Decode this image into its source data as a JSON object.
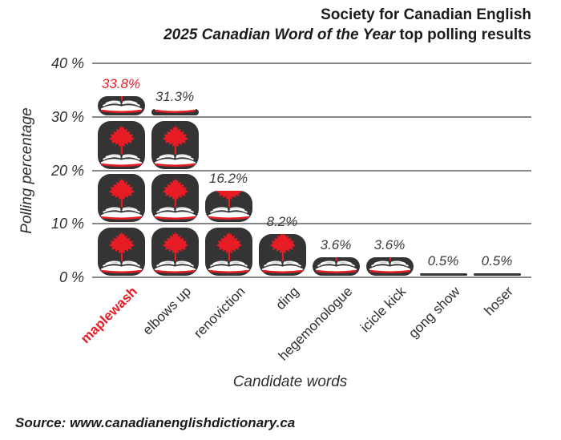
{
  "title": {
    "line1": "Society for Canadian English",
    "line2_italic": "2025 Canadian Word of the Year",
    "line2_rest": " top polling results"
  },
  "axes": {
    "y_label": "Polling percentage",
    "x_label": "Candidate words",
    "y_ticks": [
      "0 %",
      "10 %",
      "20 %",
      "30 %",
      "40 %"
    ]
  },
  "source": "Source: www.canadianenglishdictionary.ca",
  "colors": {
    "accent_red": "#e81c24",
    "tile_dark": "#343434",
    "gridline_gray": "#878787",
    "text_dark": "#2e2e2e"
  },
  "chart_data": {
    "type": "bar",
    "subtype": "pictogram-stacked-icons",
    "title": "Society for Canadian English — 2025 Canadian Word of the Year top polling results",
    "xlabel": "Candidate words",
    "ylabel": "Polling percentage",
    "ylim": [
      0,
      40
    ],
    "ytick_values": [
      0,
      10,
      20,
      30,
      40
    ],
    "unit_per_icon": 10,
    "grid": "horizontal",
    "icon": "maple-leaf-open-book-tile",
    "categories": [
      "maplewash",
      "elbows up",
      "renoviction",
      "ding",
      "hegemonologue",
      "icicle kick",
      "gong show",
      "hoser"
    ],
    "values": [
      33.8,
      31.3,
      16.2,
      8.2,
      3.6,
      3.6,
      0.5,
      0.5
    ],
    "value_labels": [
      "33.8%",
      "31.3%",
      "16.2%",
      "8.2%",
      "3.6%",
      "3.6%",
      "0.5%",
      "0.5%"
    ],
    "highlighted_category": "maplewash"
  }
}
